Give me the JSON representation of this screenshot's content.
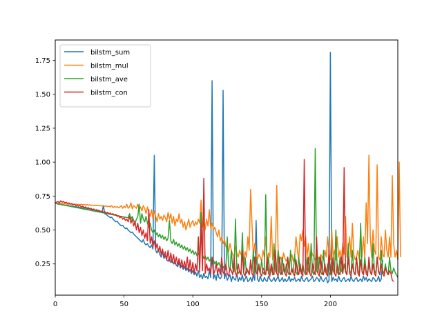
{
  "chart_data": {
    "type": "line",
    "title": "",
    "xlabel": "",
    "ylabel": "",
    "xlim": [
      0,
      249
    ],
    "ylim": [
      0.02,
      1.9
    ],
    "xticks": [
      0,
      50,
      100,
      150,
      200
    ],
    "yticks": [
      0.25,
      0.5,
      0.75,
      1.0,
      1.25,
      1.5,
      1.75
    ],
    "grid": false,
    "legend_position": "top-left",
    "x_step": 1,
    "series": [
      {
        "name": "bilstm_sum",
        "color": "#1f77b4",
        "values": [
          0.7,
          0.695,
          0.69,
          0.692,
          0.688,
          0.685,
          0.687,
          0.682,
          0.68,
          0.683,
          0.679,
          0.676,
          0.678,
          0.674,
          0.671,
          0.673,
          0.669,
          0.668,
          0.665,
          0.667,
          0.663,
          0.66,
          0.662,
          0.657,
          0.655,
          0.658,
          0.652,
          0.648,
          0.65,
          0.645,
          0.642,
          0.646,
          0.638,
          0.635,
          0.63,
          0.68,
          0.62,
          0.615,
          0.605,
          0.6,
          0.59,
          0.595,
          0.58,
          0.57,
          0.56,
          0.565,
          0.55,
          0.54,
          0.53,
          0.535,
          0.52,
          0.51,
          0.515,
          0.5,
          0.49,
          0.48,
          0.485,
          0.47,
          0.46,
          0.45,
          0.44,
          0.43,
          0.42,
          0.41,
          0.43,
          0.4,
          0.39,
          0.4,
          0.38,
          0.37,
          0.39,
          0.36,
          1.05,
          0.35,
          0.33,
          0.36,
          0.32,
          0.3,
          0.34,
          0.29,
          0.31,
          0.28,
          0.27,
          0.3,
          0.26,
          0.28,
          0.25,
          0.27,
          0.24,
          0.23,
          0.26,
          0.22,
          0.24,
          0.21,
          0.23,
          0.2,
          0.22,
          0.19,
          0.21,
          0.18,
          0.2,
          0.17,
          0.19,
          0.16,
          0.2,
          0.15,
          0.17,
          0.14,
          0.18,
          0.15,
          0.16,
          0.14,
          0.2,
          0.15,
          1.6,
          0.14,
          0.17,
          0.13,
          0.19,
          0.15,
          0.14,
          0.16,
          1.53,
          0.14,
          0.18,
          0.13,
          0.15,
          0.17,
          0.12,
          0.16,
          0.14,
          0.13,
          0.18,
          0.12,
          0.15,
          0.13,
          0.17,
          0.12,
          0.14,
          0.16,
          0.12,
          0.13,
          0.15,
          0.12,
          0.17,
          0.13,
          0.57,
          0.14,
          0.12,
          0.16,
          0.13,
          0.12,
          0.15,
          0.13,
          0.12,
          0.16,
          0.14,
          0.12,
          0.13,
          0.15,
          0.12,
          0.14,
          0.16,
          0.12,
          0.13,
          0.15,
          0.12,
          0.14,
          0.12,
          0.13,
          0.16,
          0.12,
          0.14,
          0.13,
          0.15,
          0.12,
          0.13,
          0.14,
          0.12,
          0.16,
          0.13,
          0.12,
          0.14,
          0.15,
          0.12,
          0.13,
          0.14,
          0.16,
          0.12,
          0.13,
          0.15,
          0.14,
          0.12,
          0.16,
          0.13,
          0.12,
          0.14,
          0.15,
          0.11,
          0.13,
          1.81,
          0.12,
          0.15,
          0.13,
          0.14,
          0.12,
          0.16,
          0.13,
          0.12,
          0.14,
          0.15,
          0.12,
          0.13,
          0.14,
          0.12,
          0.16,
          0.13,
          0.12,
          0.14,
          0.15,
          0.12,
          0.13,
          0.14,
          0.12,
          0.16,
          0.13,
          0.15,
          0.12,
          0.14,
          0.13,
          0.12,
          0.15,
          0.14,
          0.12,
          0.13,
          0.16,
          0.12,
          0.14,
          0.28
        ]
      },
      {
        "name": "bilstm_mul",
        "color": "#ff7f0e",
        "values": [
          0.7,
          0.698,
          0.695,
          0.697,
          0.693,
          0.695,
          0.692,
          0.694,
          0.69,
          0.693,
          0.69,
          0.692,
          0.689,
          0.691,
          0.688,
          0.69,
          0.687,
          0.689,
          0.686,
          0.69,
          0.685,
          0.688,
          0.684,
          0.687,
          0.683,
          0.686,
          0.682,
          0.684,
          0.681,
          0.683,
          0.68,
          0.682,
          0.678,
          0.681,
          0.676,
          0.68,
          0.674,
          0.678,
          0.672,
          0.676,
          0.67,
          0.68,
          0.665,
          0.673,
          0.668,
          0.672,
          0.664,
          0.67,
          0.68,
          0.66,
          0.675,
          0.665,
          0.69,
          0.66,
          0.67,
          0.7,
          0.655,
          0.68,
          0.67,
          0.66,
          0.69,
          0.65,
          0.67,
          0.64,
          0.68,
          0.66,
          0.62,
          0.67,
          0.63,
          0.6,
          0.65,
          0.58,
          0.64,
          0.6,
          0.56,
          0.62,
          0.58,
          0.6,
          0.57,
          0.61,
          0.59,
          0.56,
          0.63,
          0.58,
          0.62,
          0.55,
          0.6,
          0.53,
          0.58,
          0.56,
          0.62,
          0.55,
          0.58,
          0.52,
          0.56,
          0.5,
          0.54,
          0.58,
          0.52,
          0.55,
          0.57,
          0.53,
          0.56,
          0.54,
          0.58,
          0.55,
          0.72,
          0.52,
          0.55,
          0.5,
          0.58,
          0.53,
          0.65,
          0.51,
          0.55,
          0.5,
          0.52,
          0.48,
          0.45,
          0.5,
          0.42,
          0.45,
          0.4,
          0.43,
          0.38,
          0.36,
          0.34,
          0.4,
          0.35,
          0.32,
          0.3,
          0.38,
          0.33,
          0.3,
          0.35,
          0.32,
          0.3,
          0.28,
          0.34,
          0.3,
          0.45,
          0.35,
          0.8,
          0.55,
          0.3,
          0.4,
          0.35,
          0.28,
          0.32,
          0.3,
          0.27,
          0.35,
          0.3,
          0.45,
          0.28,
          0.33,
          0.3,
          0.6,
          0.28,
          0.32,
          0.3,
          0.83,
          0.35,
          0.28,
          0.3,
          0.26,
          0.33,
          0.29,
          0.27,
          0.3,
          0.25,
          0.28,
          0.32,
          0.27,
          0.3,
          0.45,
          0.35,
          0.28,
          0.47,
          0.42,
          0.5,
          0.38,
          0.45,
          0.3,
          0.4,
          0.28,
          0.35,
          0.32,
          0.3,
          0.28,
          0.33,
          0.3,
          0.27,
          0.32,
          0.3,
          0.28,
          0.35,
          0.3,
          0.45,
          0.32,
          0.28,
          0.5,
          0.3,
          0.35,
          0.28,
          0.45,
          0.3,
          0.35,
          0.28,
          0.4,
          0.32,
          0.6,
          0.3,
          0.35,
          0.45,
          0.3,
          0.55,
          0.32,
          0.28,
          0.3,
          0.35,
          0.28,
          0.5,
          0.3,
          0.45,
          0.3,
          0.7,
          0.4,
          1.05,
          0.45,
          0.3,
          0.5,
          0.35,
          0.32,
          0.98,
          0.3,
          0.28,
          0.45,
          0.32,
          0.3,
          0.5,
          0.35,
          0.3,
          0.45,
          0.3,
          0.9,
          0.4,
          0.3,
          0.35,
          0.28,
          1.0,
          0.3
        ]
      },
      {
        "name": "bilstm_ave",
        "color": "#2ca02c",
        "values": [
          0.7,
          0.695,
          0.692,
          0.69,
          0.688,
          0.686,
          0.684,
          0.682,
          0.68,
          0.678,
          0.676,
          0.674,
          0.672,
          0.67,
          0.668,
          0.666,
          0.664,
          0.662,
          0.66,
          0.658,
          0.656,
          0.654,
          0.652,
          0.65,
          0.648,
          0.646,
          0.644,
          0.642,
          0.64,
          0.638,
          0.636,
          0.634,
          0.632,
          0.63,
          0.628,
          0.626,
          0.624,
          0.622,
          0.62,
          0.618,
          0.616,
          0.614,
          0.612,
          0.61,
          0.608,
          0.606,
          0.604,
          0.602,
          0.6,
          0.598,
          0.596,
          0.594,
          0.592,
          0.59,
          0.62,
          0.58,
          0.6,
          0.57,
          0.55,
          0.58,
          0.6,
          0.69,
          0.55,
          0.62,
          0.58,
          0.56,
          0.6,
          0.55,
          0.52,
          0.55,
          0.5,
          0.48,
          0.5,
          0.46,
          0.48,
          0.45,
          0.47,
          0.44,
          0.46,
          0.43,
          0.45,
          0.42,
          0.44,
          0.57,
          0.42,
          0.4,
          0.43,
          0.39,
          0.41,
          0.38,
          0.4,
          0.37,
          0.39,
          0.36,
          0.38,
          0.35,
          0.37,
          0.34,
          0.36,
          0.33,
          0.35,
          0.32,
          0.34,
          0.31,
          0.33,
          0.3,
          0.63,
          0.32,
          0.29,
          0.31,
          0.28,
          0.3,
          0.27,
          0.29,
          0.26,
          0.28,
          0.25,
          0.27,
          0.24,
          0.26,
          0.23,
          0.25,
          0.22,
          0.24,
          0.21,
          0.45,
          0.23,
          0.2,
          0.35,
          0.22,
          0.19,
          0.58,
          0.21,
          0.18,
          0.2,
          0.17,
          0.48,
          0.19,
          0.3,
          0.18,
          0.2,
          0.17,
          0.25,
          0.19,
          0.35,
          0.18,
          0.3,
          0.2,
          0.22,
          0.18,
          0.28,
          0.19,
          0.17,
          0.76,
          0.2,
          0.3,
          0.18,
          0.22,
          0.17,
          0.4,
          0.2,
          0.18,
          0.35,
          0.19,
          0.17,
          0.3,
          0.2,
          0.18,
          0.25,
          0.19,
          0.17,
          0.35,
          0.2,
          0.18,
          0.32,
          0.19,
          0.17,
          0.3,
          0.2,
          0.18,
          0.25,
          0.19,
          0.17,
          0.3,
          0.2,
          0.18,
          0.4,
          0.19,
          0.17,
          1.1,
          0.2,
          0.18,
          0.3,
          0.19,
          0.17,
          0.35,
          0.2,
          0.18,
          0.25,
          0.19,
          0.17,
          0.3,
          0.2,
          0.18,
          0.5,
          0.19,
          0.17,
          0.3,
          0.2,
          0.18,
          0.25,
          0.19,
          0.17,
          0.4,
          0.2,
          0.18,
          0.35,
          0.19,
          0.17,
          0.3,
          0.2,
          0.18,
          0.55,
          0.19,
          0.17,
          0.3,
          0.2,
          0.18,
          0.25,
          0.19,
          0.17,
          0.4,
          0.2,
          0.18,
          0.3,
          0.19,
          0.17,
          0.35,
          0.2,
          0.18,
          0.25,
          0.19,
          0.17,
          0.3,
          0.2,
          0.18,
          0.22,
          0.19,
          0.17,
          0.15
        ]
      },
      {
        "name": "bilstm_con",
        "color": "#d62728",
        "values": [
          0.7,
          0.705,
          0.71,
          0.7,
          0.715,
          0.705,
          0.71,
          0.7,
          0.705,
          0.695,
          0.7,
          0.69,
          0.695,
          0.685,
          0.69,
          0.68,
          0.685,
          0.675,
          0.68,
          0.67,
          0.675,
          0.665,
          0.67,
          0.66,
          0.665,
          0.655,
          0.66,
          0.65,
          0.655,
          0.645,
          0.65,
          0.64,
          0.645,
          0.635,
          0.64,
          0.63,
          0.635,
          0.625,
          0.63,
          0.62,
          0.625,
          0.615,
          0.62,
          0.61,
          0.615,
          0.6,
          0.605,
          0.59,
          0.6,
          0.58,
          0.59,
          0.57,
          0.58,
          0.56,
          0.6,
          0.55,
          0.58,
          0.53,
          0.56,
          0.5,
          0.55,
          0.48,
          0.52,
          0.46,
          0.5,
          0.44,
          0.48,
          0.42,
          0.65,
          0.4,
          0.45,
          0.38,
          0.42,
          0.36,
          0.4,
          0.34,
          0.38,
          0.32,
          0.36,
          0.3,
          0.34,
          0.28,
          0.35,
          0.27,
          0.33,
          0.26,
          0.32,
          0.25,
          0.3,
          0.24,
          0.29,
          0.23,
          0.28,
          0.22,
          0.27,
          0.21,
          0.3,
          0.2,
          0.28,
          0.19,
          0.26,
          0.18,
          0.25,
          0.2,
          0.45,
          0.19,
          0.55,
          0.2,
          0.88,
          0.18,
          0.25,
          0.2,
          0.22,
          0.18,
          0.3,
          0.17,
          0.2,
          0.25,
          0.18,
          0.22,
          0.17,
          0.3,
          0.19,
          0.17,
          0.25,
          0.18,
          0.16,
          0.22,
          0.2,
          0.17,
          0.3,
          0.18,
          0.16,
          0.25,
          0.19,
          0.17,
          0.35,
          0.18,
          0.16,
          0.22,
          0.2,
          0.17,
          0.28,
          0.18,
          0.16,
          0.3,
          0.19,
          0.17,
          0.25,
          0.18,
          0.16,
          0.22,
          0.2,
          0.17,
          0.3,
          0.18,
          0.16,
          0.25,
          0.19,
          0.17,
          0.35,
          0.18,
          0.16,
          0.3,
          0.2,
          0.17,
          0.25,
          0.18,
          0.16,
          0.3,
          0.19,
          0.17,
          0.22,
          0.18,
          0.16,
          0.28,
          0.2,
          0.17,
          0.25,
          0.18,
          0.16,
          1.02,
          0.19,
          0.17,
          0.3,
          0.18,
          0.16,
          0.25,
          0.2,
          0.17,
          0.45,
          0.18,
          0.16,
          0.3,
          0.19,
          0.17,
          0.25,
          0.18,
          0.16,
          0.35,
          0.2,
          0.17,
          0.3,
          0.18,
          0.16,
          0.25,
          0.19,
          0.17,
          0.3,
          0.18,
          0.96,
          0.2,
          0.17,
          0.3,
          0.18,
          0.16,
          0.25,
          0.19,
          0.17,
          0.3,
          0.18,
          0.16,
          0.28,
          0.2,
          0.17,
          0.25,
          0.18,
          0.16,
          0.3,
          0.19,
          0.17,
          0.25,
          0.18,
          0.16,
          0.3,
          0.2,
          0.17,
          0.25,
          0.18,
          0.16,
          0.22,
          0.19,
          0.17,
          0.2,
          0.18,
          0.13,
          0.12
        ]
      }
    ]
  }
}
